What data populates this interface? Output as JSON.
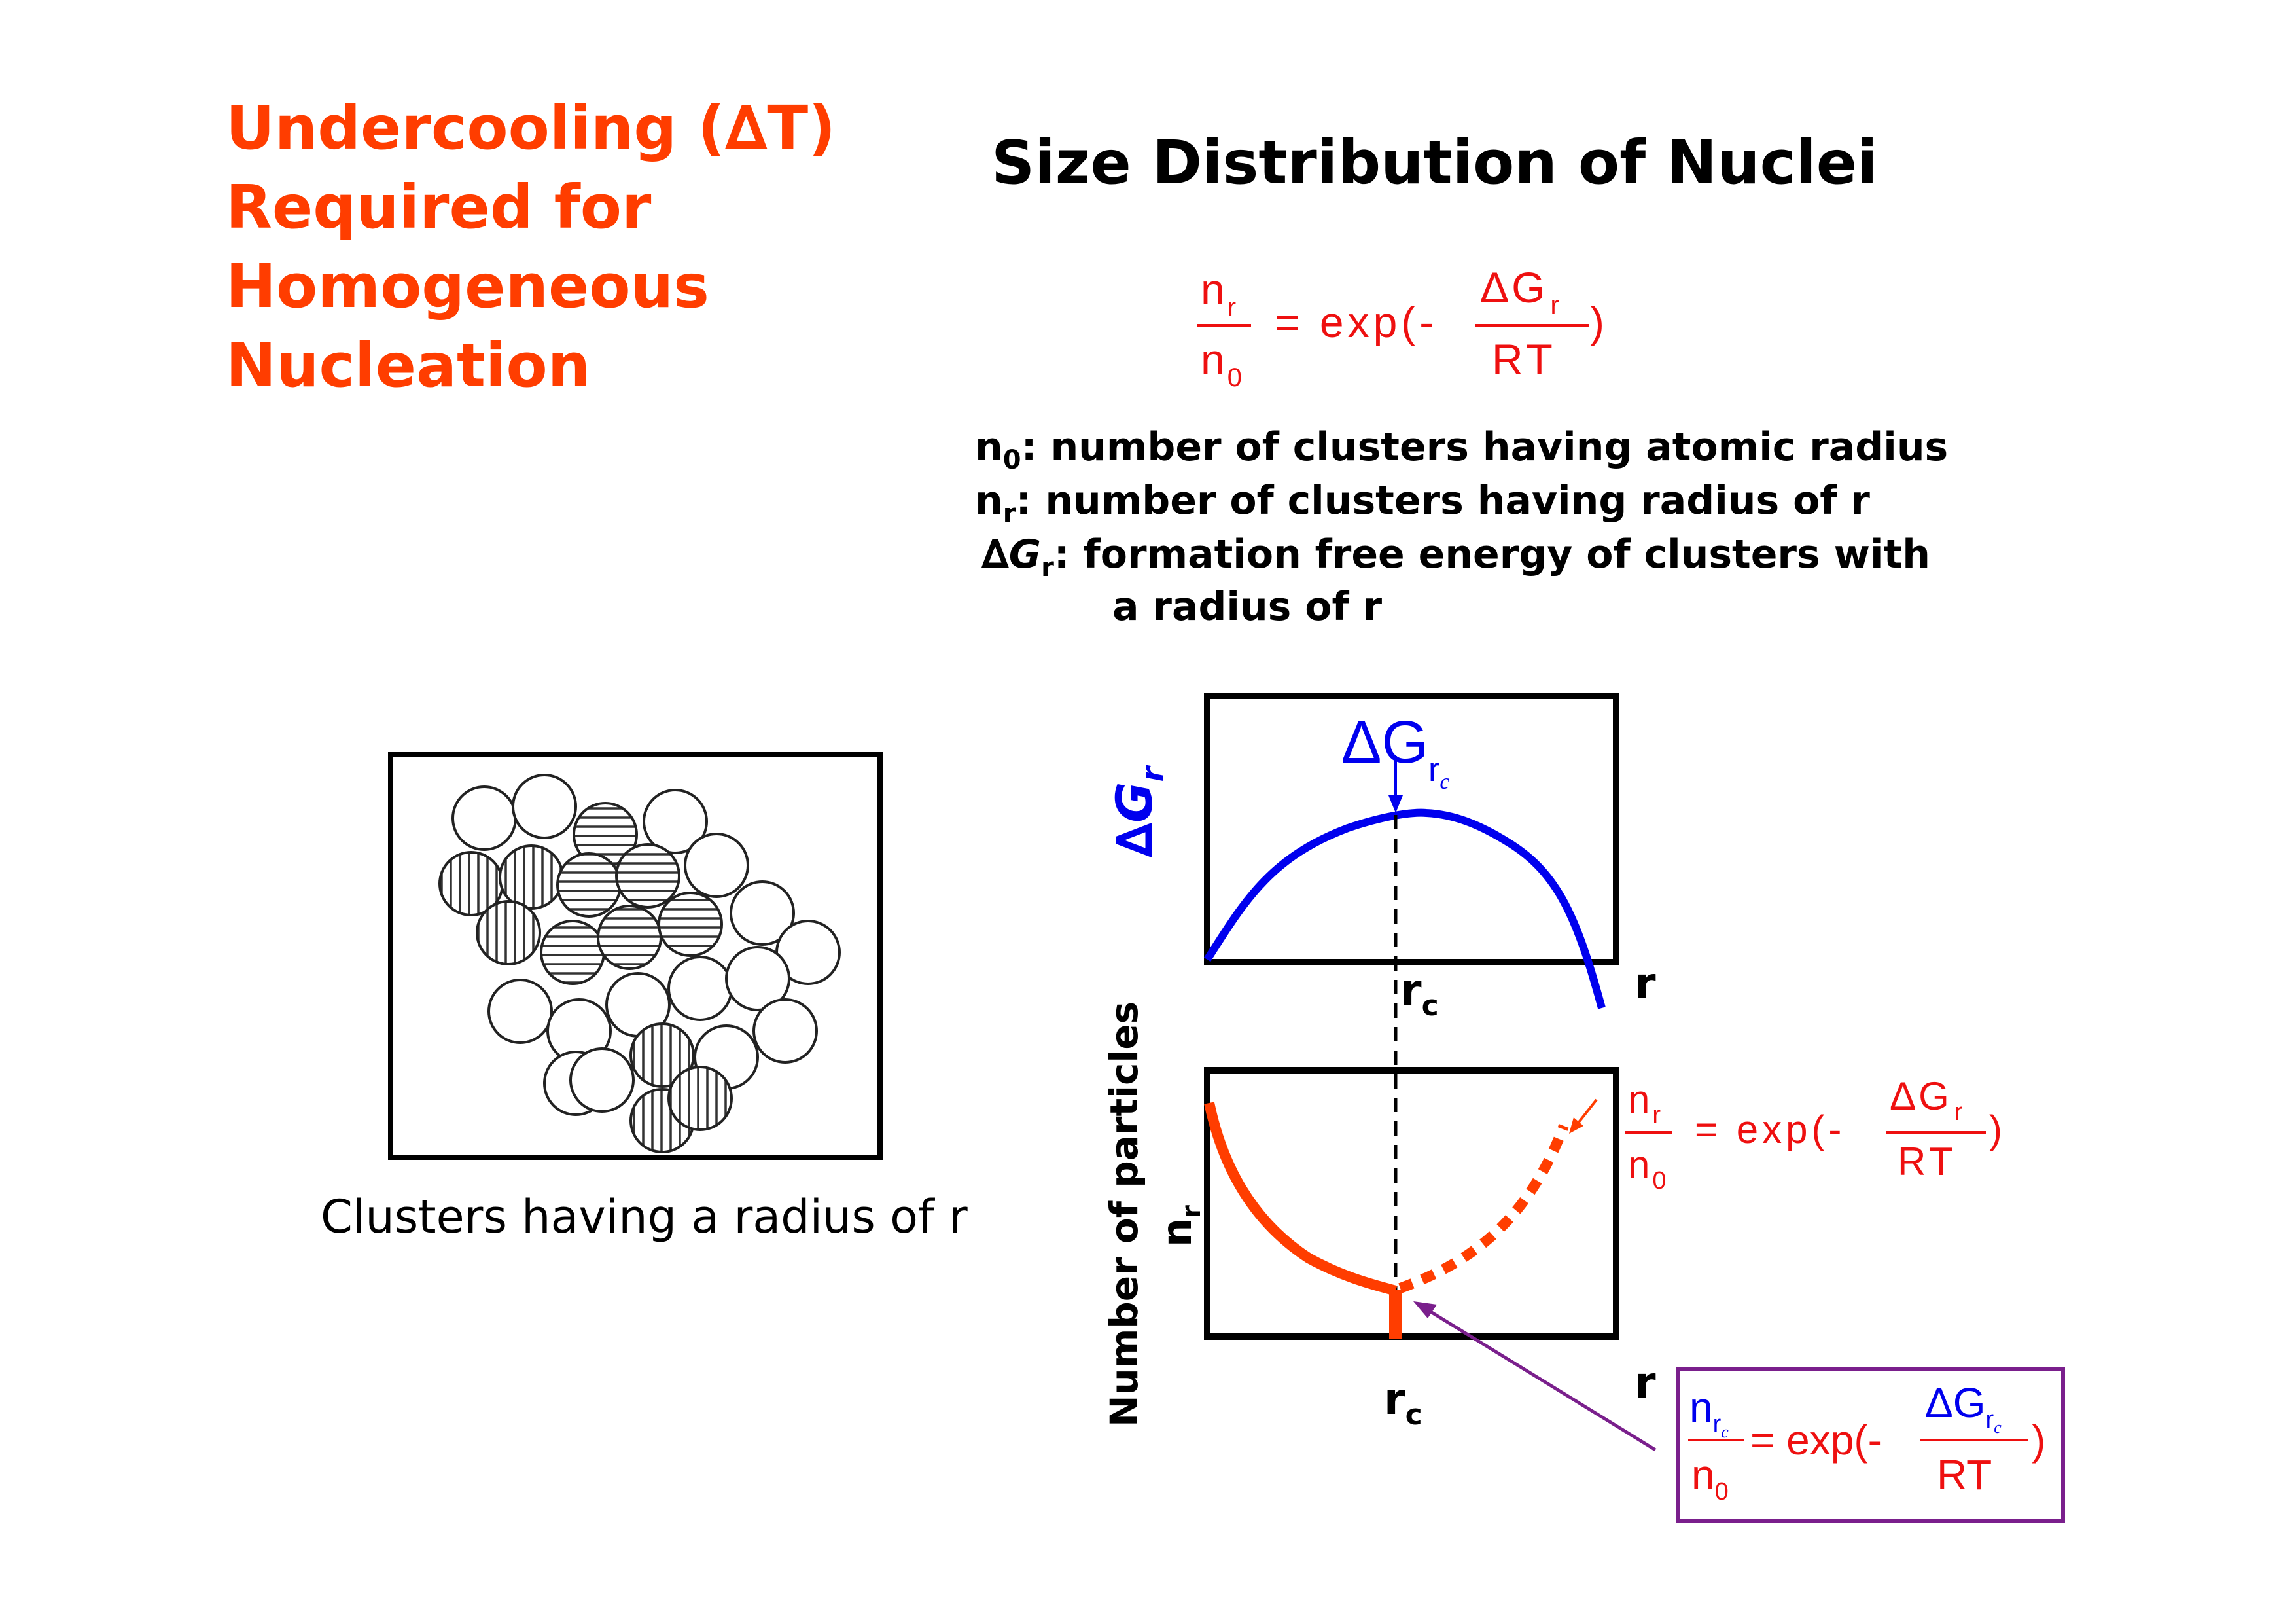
{
  "left_title": {
    "lines": [
      "Undercooling (∆T)",
      "Required for",
      "Homogeneous",
      "Nucleation"
    ]
  },
  "main_title": "Size Distribution of Nuclei",
  "top_formula": {
    "lhs_num": "n",
    "lhs_num_sub": "r",
    "lhs_den": "n",
    "lhs_den_sub": "0",
    "eq": "= exp(-",
    "rhs_num": "ΔG",
    "rhs_num_sub": "r",
    "rhs_den": "RT",
    "close": ")"
  },
  "definitions": [
    {
      "sym": "n",
      "sub": "0",
      "text": ": number of clusters having atomic radius"
    },
    {
      "sym": "n",
      "sub": "r",
      "text": ": number of clusters having radius of r"
    },
    {
      "sym": "∆G",
      "sub": "r",
      "text": ": formation free energy of clusters with"
    },
    {
      "sym": "",
      "sub": "",
      "text": "a radius of r"
    }
  ],
  "cluster_caption": "Clusters having a radius of r",
  "top_plot": {
    "ylabel": "∆G",
    "ylabel_sub": "r",
    "peak_label": "ΔG",
    "peak_label_sub": "r",
    "peak_label_subsub": "c",
    "x_tick": "r",
    "x_tick_sub": "c",
    "xlabel": "r",
    "curve_color": "#0000ee"
  },
  "bottom_plot": {
    "ylabel": "Number of particles",
    "ylabel2": "n",
    "ylabel2_sub": "r",
    "x_tick": "r",
    "x_tick_sub": "c",
    "xlabel": "r",
    "curve_color": "#ff3d00"
  },
  "side_formula": {
    "lhs_num": "n",
    "lhs_num_sub": "r",
    "lhs_den": "n",
    "lhs_den_sub": "0",
    "eq": "= exp(-",
    "rhs_num": "ΔG",
    "rhs_num_sub": "r",
    "rhs_den": "RT",
    "close": ")"
  },
  "boxed_formula": {
    "lhs_num": "n",
    "lhs_num_sub": "r",
    "lhs_num_subsub": "c",
    "lhs_den": "n",
    "lhs_den_sub": "0",
    "eq": "= exp(-",
    "rhs_num": "ΔG",
    "rhs_num_sub": "r",
    "rhs_num_subsub": "c",
    "rhs_den": "RT",
    "close": ")",
    "border_color": "#7a1f8c"
  }
}
